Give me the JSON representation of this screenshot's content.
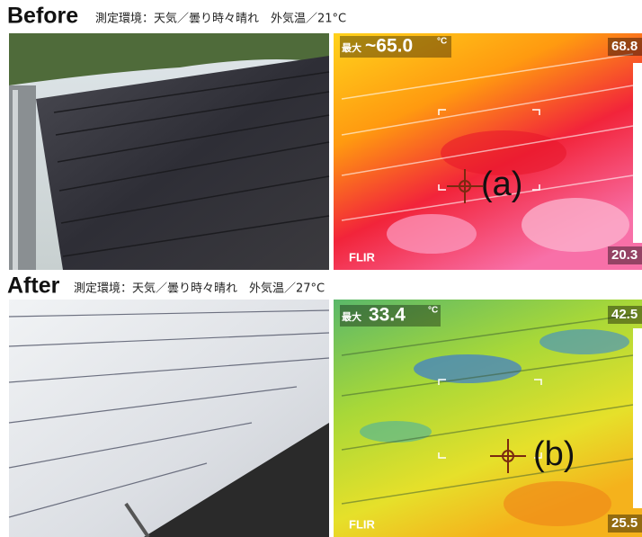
{
  "sections": [
    {
      "label": "Before",
      "conditions": "測定環境：天気／曇り時々晴れ　外気温／21°C",
      "thermal": {
        "max_label": "最大",
        "max_value": "~65.0",
        "unit": "°C",
        "scale_top": "68.8",
        "scale_bottom": "20.3",
        "brand": "FLIR",
        "marker": "(a)"
      }
    },
    {
      "label": "After",
      "conditions": "測定環境：天気／曇り時々晴れ　外気温／27°C",
      "thermal": {
        "max_label": "最大",
        "max_value": "33.4",
        "unit": "°C",
        "scale_top": "42.5",
        "scale_bottom": "25.5",
        "brand": "FLIR",
        "marker": "(b)"
      }
    }
  ]
}
